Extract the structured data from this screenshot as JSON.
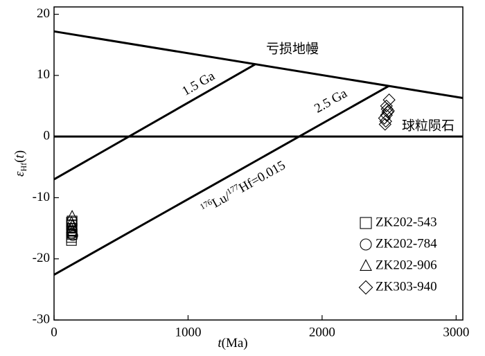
{
  "chart_data": {
    "type": "scatter",
    "x_label": [
      "t",
      "(Ma)"
    ],
    "y_label": [
      "ε",
      "Hf",
      "(",
      "t",
      ")"
    ],
    "xlim": [
      0,
      3050
    ],
    "ylim": [
      -30,
      21.2
    ],
    "xticks": [
      0,
      1000,
      2000,
      3000
    ],
    "yticks": [
      -30,
      -20,
      -10,
      0,
      10,
      20
    ],
    "lines": [
      {
        "name": "亏损地幔",
        "x": [
          0,
          3050
        ],
        "values": [
          17.2,
          6.3
        ]
      },
      {
        "name": "球粒陨石",
        "x": [
          0,
          3050
        ],
        "values": [
          0,
          0
        ]
      },
      {
        "name": "1.5 Ga",
        "x": [
          0,
          1500
        ],
        "values": [
          -7,
          11.8
        ]
      },
      {
        "name": "2.5 Ga",
        "x": [
          0,
          2500
        ],
        "values": [
          -22.6,
          8.3
        ]
      }
    ],
    "annotation": [
      "176",
      "Lu/",
      "177",
      "Hf=0.015"
    ],
    "legend": "lower right",
    "color": "#000000",
    "series": [
      {
        "name": "ZK202-543",
        "marker": "square",
        "x": [
          130,
          130,
          135,
          130,
          135,
          130,
          130,
          135
        ],
        "values": [
          -14,
          -14.5,
          -15,
          -15.5,
          -16,
          -16.5,
          -17,
          -13.8
        ]
      },
      {
        "name": "ZK202-784",
        "marker": "circle",
        "x": [
          130,
          135,
          130,
          140,
          130
        ],
        "values": [
          -15,
          -15.5,
          -16,
          -16.2,
          -15.8
        ]
      },
      {
        "name": "ZK202-906",
        "marker": "triangle",
        "x": [
          135,
          130,
          135,
          130,
          135
        ],
        "values": [
          -13,
          -14,
          -14.5,
          -15,
          -15.5
        ]
      },
      {
        "name": "ZK303-940",
        "marker": "diamond",
        "x": [
          2470,
          2475,
          2465,
          2480,
          2490,
          2495,
          2485,
          2480,
          2500
        ],
        "values": [
          2,
          2.5,
          3,
          3.5,
          4,
          4.2,
          4.5,
          5,
          6
        ]
      }
    ]
  }
}
